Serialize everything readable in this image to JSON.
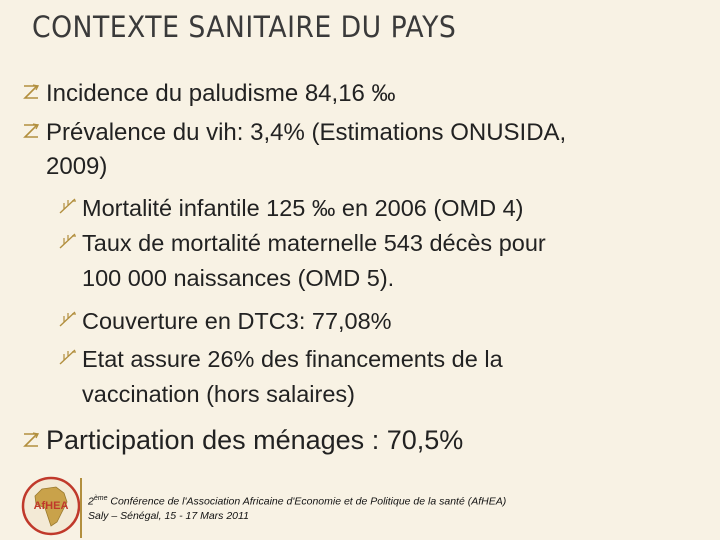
{
  "slide": {
    "title": "CONTEXTE SANITAIRE DU PAYS",
    "bullets": [
      {
        "level": 1,
        "text": "Incidence du paludisme 84,16 ‰"
      },
      {
        "level": 1,
        "line1": "Prévalence du vih: 3,4% (Estimations ONUSIDA,",
        "line2": "2009)"
      },
      {
        "level": 2,
        "text": "Mortalité infantile 125 ‰ en 2006 (OMD 4)"
      },
      {
        "level": 2,
        "line1": "Taux de mortalité maternelle 543 décès pour",
        "line2": "100 000 naissances (OMD 5)."
      },
      {
        "level": 2,
        "text": "Couverture en DTC3: 77,08%"
      },
      {
        "level": 2,
        "line1": "Etat assure 26% des financements de la",
        "line2": "vaccination (hors salaires)"
      },
      {
        "level": 1,
        "text": "Participation des ménages : 70,5%"
      }
    ]
  },
  "footer": {
    "conf_number": "2",
    "conf_sup": "ème",
    "conf_rest": " Conférence de l'Association Africaine d'Economie et de Politique de la santé (AfHEA)",
    "location": "Saly – Sénégal, 15 - 17 Mars 2011",
    "logo_text": "AfHEA"
  },
  "colors": {
    "background": "#f8f2e4",
    "bullet_icon": "#b28f3e",
    "text": "#222222",
    "logo_ring": "#c0392b"
  },
  "icons": {
    "level1_bullet": "z-arrow-bullet-icon",
    "level2_bullet": "flag-bullet-icon",
    "logo": "afhea-africa-logo"
  }
}
